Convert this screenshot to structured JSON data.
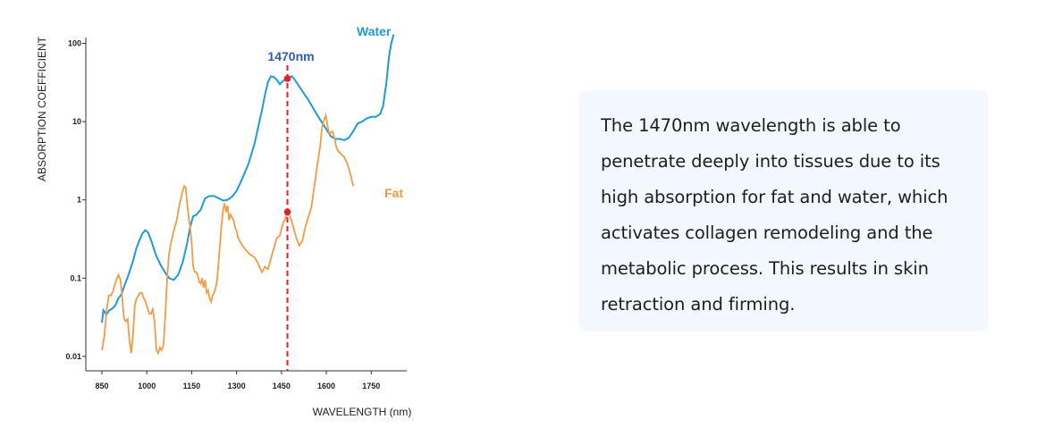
{
  "chart_data": {
    "type": "line",
    "xlabel": "WAVELENGTH (nm)",
    "ylabel": "ABSORPTION COEFFICIENT",
    "xlim": [
      850,
      1920
    ],
    "ylim": [
      0.01,
      130
    ],
    "y_scale": "log",
    "grid": false,
    "x_ticks": [
      850,
      1000,
      1150,
      1300,
      1450,
      1600,
      1750
    ],
    "x_tick_labels": [
      "850",
      "1000",
      "1150",
      "1300",
      "1450",
      "1600",
      "1750"
    ],
    "y_ticks": [
      0.01,
      0.1,
      1,
      10,
      100
    ],
    "y_tick_labels": [
      "0.01",
      "0.1",
      "1",
      "10",
      "100"
    ],
    "marker": {
      "wavelength": 1470,
      "label": "1470nm",
      "color": "#e5202a"
    },
    "series": [
      {
        "name": "Water",
        "color": "#1f9bd7",
        "points": [
          [
            850,
            0.027
          ],
          [
            855,
            0.039
          ],
          [
            865,
            0.034
          ],
          [
            875,
            0.039
          ],
          [
            885,
            0.041
          ],
          [
            895,
            0.045
          ],
          [
            905,
            0.055
          ],
          [
            915,
            0.062
          ],
          [
            925,
            0.08
          ],
          [
            935,
            0.1
          ],
          [
            945,
            0.13
          ],
          [
            955,
            0.17
          ],
          [
            965,
            0.24
          ],
          [
            975,
            0.3
          ],
          [
            985,
            0.37
          ],
          [
            995,
            0.41
          ],
          [
            1005,
            0.38
          ],
          [
            1015,
            0.3
          ],
          [
            1030,
            0.2
          ],
          [
            1045,
            0.15
          ],
          [
            1060,
            0.12
          ],
          [
            1075,
            0.1
          ],
          [
            1090,
            0.095
          ],
          [
            1105,
            0.11
          ],
          [
            1120,
            0.16
          ],
          [
            1135,
            0.28
          ],
          [
            1145,
            0.45
          ],
          [
            1155,
            0.62
          ],
          [
            1165,
            0.64
          ],
          [
            1180,
            0.75
          ],
          [
            1195,
            1.05
          ],
          [
            1210,
            1.12
          ],
          [
            1225,
            1.12
          ],
          [
            1240,
            1.05
          ],
          [
            1255,
            0.98
          ],
          [
            1270,
            1.0
          ],
          [
            1285,
            1.1
          ],
          [
            1300,
            1.3
          ],
          [
            1320,
            1.9
          ],
          [
            1340,
            2.9
          ],
          [
            1360,
            5.2
          ],
          [
            1375,
            9.5
          ],
          [
            1385,
            14
          ],
          [
            1395,
            22
          ],
          [
            1405,
            32
          ],
          [
            1415,
            38
          ],
          [
            1425,
            37
          ],
          [
            1435,
            34
          ],
          [
            1445,
            30
          ],
          [
            1455,
            33
          ],
          [
            1465,
            35
          ],
          [
            1475,
            36
          ],
          [
            1485,
            38
          ],
          [
            1495,
            34
          ],
          [
            1510,
            28
          ],
          [
            1525,
            23
          ],
          [
            1540,
            19
          ],
          [
            1560,
            14
          ],
          [
            1580,
            10.5
          ],
          [
            1600,
            8
          ],
          [
            1615,
            6.5
          ],
          [
            1630,
            6
          ],
          [
            1645,
            6
          ],
          [
            1660,
            5.8
          ],
          [
            1675,
            6.2
          ],
          [
            1690,
            7.5
          ],
          [
            1705,
            9.5
          ],
          [
            1720,
            10
          ],
          [
            1735,
            11
          ],
          [
            1750,
            11.5
          ],
          [
            1765,
            11.5
          ],
          [
            1780,
            12.5
          ],
          [
            1790,
            16
          ],
          [
            1800,
            30
          ],
          [
            1810,
            70
          ],
          [
            1817,
            100
          ],
          [
            1825,
            130
          ]
        ]
      },
      {
        "name": "Fat",
        "color": "#f29b45",
        "points": [
          [
            850,
            0.012
          ],
          [
            858,
            0.018
          ],
          [
            866,
            0.04
          ],
          [
            873,
            0.06
          ],
          [
            880,
            0.06
          ],
          [
            887,
            0.068
          ],
          [
            894,
            0.085
          ],
          [
            900,
            0.1
          ],
          [
            906,
            0.11
          ],
          [
            912,
            0.095
          ],
          [
            918,
            0.055
          ],
          [
            924,
            0.03
          ],
          [
            930,
            0.028
          ],
          [
            936,
            0.03
          ],
          [
            942,
            0.016
          ],
          [
            948,
            0.011
          ],
          [
            954,
            0.019
          ],
          [
            960,
            0.045
          ],
          [
            966,
            0.055
          ],
          [
            972,
            0.06
          ],
          [
            978,
            0.065
          ],
          [
            984,
            0.065
          ],
          [
            990,
            0.055
          ],
          [
            996,
            0.05
          ],
          [
            1002,
            0.042
          ],
          [
            1008,
            0.035
          ],
          [
            1014,
            0.035
          ],
          [
            1020,
            0.04
          ],
          [
            1026,
            0.028
          ],
          [
            1032,
            0.012
          ],
          [
            1038,
            0.011
          ],
          [
            1044,
            0.013
          ],
          [
            1050,
            0.012
          ],
          [
            1056,
            0.014
          ],
          [
            1062,
            0.035
          ],
          [
            1068,
            0.1
          ],
          [
            1074,
            0.2
          ],
          [
            1080,
            0.27
          ],
          [
            1090,
            0.4
          ],
          [
            1100,
            0.55
          ],
          [
            1110,
            0.9
          ],
          [
            1120,
            1.3
          ],
          [
            1125,
            1.5
          ],
          [
            1130,
            1.45
          ],
          [
            1135,
            0.9
          ],
          [
            1140,
            0.6
          ],
          [
            1145,
            0.45
          ],
          [
            1150,
            0.28
          ],
          [
            1155,
            0.14
          ],
          [
            1160,
            0.12
          ],
          [
            1165,
            0.12
          ],
          [
            1170,
            0.11
          ],
          [
            1175,
            0.09
          ],
          [
            1180,
            0.085
          ],
          [
            1185,
            0.1
          ],
          [
            1190,
            0.075
          ],
          [
            1195,
            0.095
          ],
          [
            1200,
            0.065
          ],
          [
            1205,
            0.07
          ],
          [
            1210,
            0.055
          ],
          [
            1215,
            0.05
          ],
          [
            1220,
            0.06
          ],
          [
            1225,
            0.065
          ],
          [
            1230,
            0.075
          ],
          [
            1235,
            0.095
          ],
          [
            1240,
            0.16
          ],
          [
            1245,
            0.28
          ],
          [
            1250,
            0.5
          ],
          [
            1255,
            0.75
          ],
          [
            1260,
            0.9
          ],
          [
            1265,
            0.7
          ],
          [
            1270,
            0.85
          ],
          [
            1275,
            0.55
          ],
          [
            1280,
            0.65
          ],
          [
            1290,
            0.55
          ],
          [
            1295,
            0.45
          ],
          [
            1300,
            0.4
          ],
          [
            1305,
            0.33
          ],
          [
            1310,
            0.3
          ],
          [
            1320,
            0.26
          ],
          [
            1330,
            0.23
          ],
          [
            1345,
            0.2
          ],
          [
            1360,
            0.185
          ],
          [
            1370,
            0.16
          ],
          [
            1380,
            0.13
          ],
          [
            1385,
            0.12
          ],
          [
            1390,
            0.13
          ],
          [
            1395,
            0.14
          ],
          [
            1405,
            0.13
          ],
          [
            1420,
            0.21
          ],
          [
            1435,
            0.33
          ],
          [
            1445,
            0.35
          ],
          [
            1455,
            0.5
          ],
          [
            1465,
            0.6
          ],
          [
            1470,
            0.7
          ],
          [
            1480,
            0.6
          ],
          [
            1490,
            0.45
          ],
          [
            1500,
            0.32
          ],
          [
            1510,
            0.26
          ],
          [
            1520,
            0.3
          ],
          [
            1530,
            0.45
          ],
          [
            1540,
            0.6
          ],
          [
            1550,
            0.8
          ],
          [
            1560,
            1.5
          ],
          [
            1570,
            2.8
          ],
          [
            1580,
            5
          ],
          [
            1585,
            8
          ],
          [
            1590,
            10
          ],
          [
            1598,
            12
          ],
          [
            1605,
            8.5
          ],
          [
            1610,
            7
          ],
          [
            1620,
            7.5
          ],
          [
            1628,
            6
          ],
          [
            1635,
            4.5
          ],
          [
            1645,
            4
          ],
          [
            1660,
            3.5
          ],
          [
            1670,
            2.9
          ],
          [
            1680,
            2.2
          ],
          [
            1690,
            1.5
          ]
        ]
      }
    ]
  },
  "info": {
    "text": "The 1470nm wavelength is able to penetrate deeply into tissues due to its high absorption for fat and water, which activates collagen remodeling and the metabolic process. This results in skin retraction and firming."
  }
}
